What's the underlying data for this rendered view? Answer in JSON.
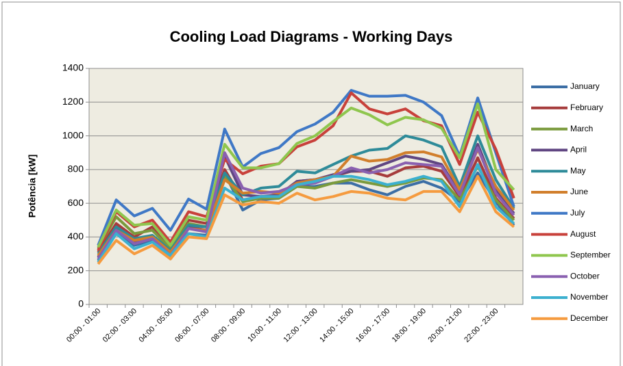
{
  "chart_data": {
    "type": "line",
    "title": "Cooling Load Diagrams - Working Days",
    "y_label": "Potência [kW]",
    "categories": [
      "00:00 - 01:00",
      null,
      "02:00 - 03:00",
      null,
      "04:00 - 05:00",
      null,
      "06:00 - 07:00",
      null,
      "08:00 - 09:00",
      null,
      "10:00 - 11:00",
      null,
      "12:00 - 13:00",
      null,
      "14:00 - 15:00",
      null,
      "16:00 - 17:00",
      null,
      "18:00 - 19:00",
      null,
      "20:00 - 21:00",
      null,
      "22:00 - 23:00",
      null
    ],
    "ylim": [
      0,
      1400
    ],
    "yticks": [
      0,
      200,
      400,
      600,
      800,
      1000,
      1200,
      1400
    ],
    "grid": true,
    "legend": "right",
    "series": [
      {
        "name": "January",
        "color": "#3c6ea5",
        "values": [
          260,
          430,
          350,
          380,
          270,
          420,
          410,
          780,
          560,
          620,
          630,
          700,
          700,
          720,
          720,
          680,
          650,
          700,
          730,
          690,
          610,
          780,
          610,
          470
        ]
      },
      {
        "name": "February",
        "color": "#a63c3c",
        "values": [
          310,
          480,
          400,
          460,
          340,
          500,
          480,
          800,
          620,
          640,
          640,
          730,
          740,
          760,
          790,
          790,
          760,
          810,
          820,
          790,
          640,
          870,
          630,
          510
        ]
      },
      {
        "name": "March",
        "color": "#7a9a3c",
        "values": [
          330,
          520,
          420,
          440,
          330,
          480,
          460,
          760,
          610,
          630,
          630,
          700,
          690,
          720,
          740,
          720,
          700,
          720,
          750,
          740,
          620,
          820,
          620,
          500
        ]
      },
      {
        "name": "April",
        "color": "#604682",
        "values": [
          280,
          460,
          370,
          400,
          300,
          460,
          440,
          880,
          650,
          640,
          650,
          730,
          740,
          770,
          790,
          800,
          840,
          880,
          860,
          830,
          660,
          950,
          680,
          540
        ]
      },
      {
        "name": "May",
        "color": "#2e8b99",
        "values": [
          300,
          460,
          390,
          410,
          320,
          470,
          460,
          780,
          650,
          690,
          700,
          790,
          780,
          830,
          880,
          915,
          925,
          1000,
          975,
          935,
          700,
          1000,
          740,
          570
        ]
      },
      {
        "name": "June",
        "color": "#d17f2c",
        "values": [
          290,
          440,
          380,
          400,
          310,
          450,
          440,
          740,
          660,
          670,
          660,
          720,
          740,
          760,
          880,
          850,
          860,
          900,
          905,
          875,
          680,
          920,
          700,
          560
        ]
      },
      {
        "name": "July",
        "color": "#3f78c6",
        "values": [
          350,
          620,
          525,
          570,
          440,
          625,
          565,
          1040,
          815,
          895,
          930,
          1025,
          1070,
          1140,
          1270,
          1235,
          1235,
          1240,
          1200,
          1120,
          880,
          1225,
          900,
          580
        ]
      },
      {
        "name": "August",
        "color": "#c8413b",
        "values": [
          320,
          550,
          460,
          500,
          370,
          550,
          520,
          860,
          775,
          820,
          835,
          935,
          975,
          1060,
          1255,
          1160,
          1130,
          1160,
          1090,
          1060,
          830,
          1140,
          920,
          630
        ]
      },
      {
        "name": "September",
        "color": "#8fc64e",
        "values": [
          340,
          560,
          470,
          480,
          350,
          520,
          500,
          950,
          810,
          810,
          835,
          955,
          1000,
          1085,
          1165,
          1125,
          1065,
          1110,
          1095,
          1045,
          870,
          1190,
          800,
          680
        ]
      },
      {
        "name": "October",
        "color": "#8a60b0",
        "values": [
          270,
          440,
          360,
          390,
          290,
          450,
          430,
          900,
          690,
          660,
          670,
          710,
          720,
          760,
          810,
          780,
          800,
          840,
          830,
          820,
          650,
          930,
          660,
          530
        ]
      },
      {
        "name": "November",
        "color": "#3cb0cf",
        "values": [
          250,
          420,
          330,
          370,
          290,
          420,
          400,
          690,
          620,
          640,
          640,
          710,
          730,
          760,
          760,
          740,
          710,
          730,
          760,
          730,
          580,
          830,
          580,
          480
        ]
      },
      {
        "name": "December",
        "color": "#f59b3f",
        "values": [
          240,
          380,
          300,
          350,
          270,
          400,
          390,
          650,
          590,
          610,
          600,
          660,
          620,
          640,
          670,
          660,
          630,
          620,
          670,
          670,
          550,
          760,
          550,
          460
        ]
      }
    ]
  }
}
